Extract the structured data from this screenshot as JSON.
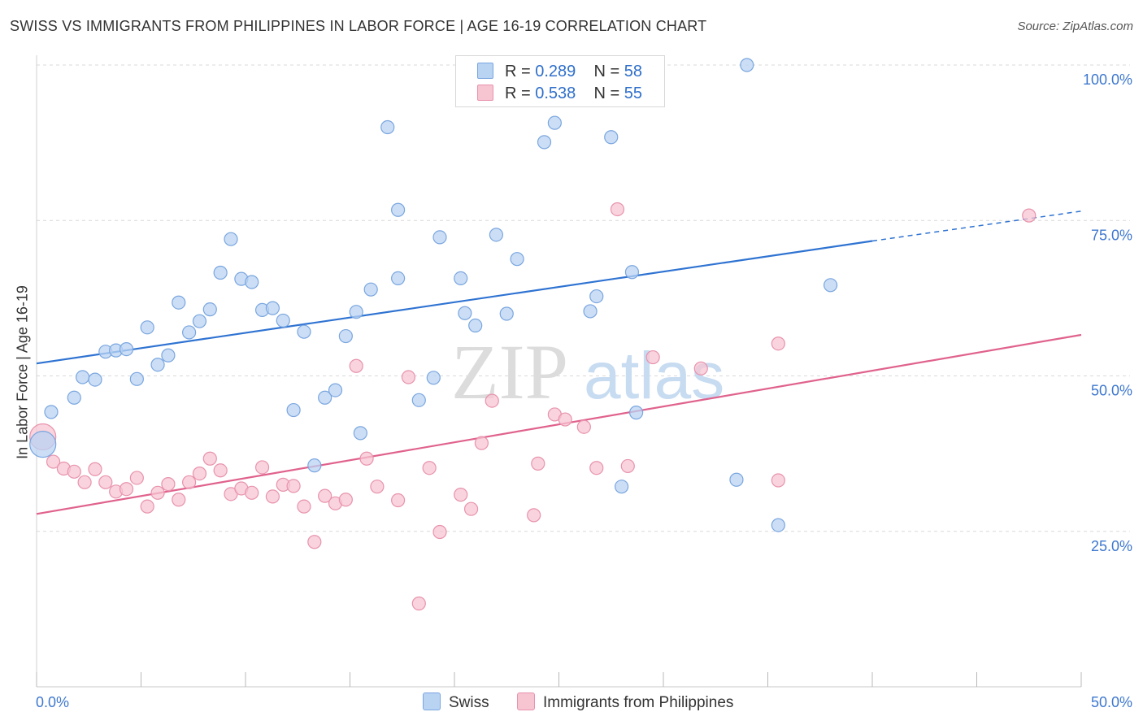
{
  "header": {
    "title": "SWISS VS IMMIGRANTS FROM PHILIPPINES IN LABOR FORCE | AGE 16-19 CORRELATION CHART",
    "source": "Source: ZipAtlas.com"
  },
  "legend": {
    "swiss": {
      "r_label": "R =",
      "r_value": "0.289",
      "n_label": "N =",
      "n_value": "58"
    },
    "philippines": {
      "r_label": "R =",
      "r_value": "0.538",
      "n_label": "N =",
      "n_value": "55"
    }
  },
  "bottom_legend": {
    "swiss": "Swiss",
    "philippines": "Immigrants from Philippines"
  },
  "watermark": {
    "zip": "ZIP",
    "atlas": "atlas"
  },
  "colors": {
    "swiss_fill": "#b9d3f3",
    "swiss_stroke": "#7aa6df",
    "swiss_line": "#2f73d2",
    "phil_fill": "#f7c4d2",
    "phil_stroke": "#e893ad",
    "phil_line": "#e0628d",
    "tick_label": "#3e78cf",
    "grid": "#d9d9d9"
  },
  "chart_data": {
    "type": "scatter",
    "title": "SWISS VS IMMIGRANTS FROM PHILIPPINES IN LABOR FORCE | AGE 16-19 CORRELATION CHART",
    "xlabel": "",
    "ylabel": "In Labor Force | Age 16-19",
    "xlim": [
      0,
      50
    ],
    "ylim": [
      0,
      100
    ],
    "x_tick_labels": [
      "0.0%",
      "50.0%"
    ],
    "y_ticks": [
      25,
      50,
      75,
      100
    ],
    "y_tick_labels": [
      "25.0%",
      "50.0%",
      "75.0%",
      "100.0%"
    ],
    "grid": true,
    "series": [
      {
        "name": "Swiss",
        "points": [
          [
            0.3,
            39.0
          ],
          [
            0.7,
            44.2
          ],
          [
            1.8,
            46.5
          ],
          [
            2.2,
            49.8
          ],
          [
            2.8,
            49.4
          ],
          [
            3.3,
            53.9
          ],
          [
            3.8,
            54.1
          ],
          [
            4.3,
            54.3
          ],
          [
            4.8,
            49.5
          ],
          [
            5.3,
            57.8
          ],
          [
            5.8,
            51.8
          ],
          [
            6.3,
            53.3
          ],
          [
            6.8,
            61.8
          ],
          [
            7.3,
            57.0
          ],
          [
            7.8,
            58.8
          ],
          [
            8.3,
            60.7
          ],
          [
            8.8,
            66.6
          ],
          [
            9.3,
            72.0
          ],
          [
            9.8,
            65.6
          ],
          [
            10.3,
            65.1
          ],
          [
            10.8,
            60.6
          ],
          [
            11.3,
            60.9
          ],
          [
            11.8,
            58.9
          ],
          [
            12.3,
            44.5
          ],
          [
            12.8,
            57.1
          ],
          [
            13.3,
            35.6
          ],
          [
            13.8,
            46.5
          ],
          [
            14.3,
            47.7
          ],
          [
            14.8,
            56.4
          ],
          [
            15.3,
            60.3
          ],
          [
            15.5,
            40.8
          ],
          [
            16.0,
            63.9
          ],
          [
            16.8,
            90.0
          ],
          [
            17.3,
            65.7
          ],
          [
            17.3,
            76.7
          ],
          [
            18.3,
            46.1
          ],
          [
            19.0,
            49.7
          ],
          [
            19.3,
            72.3
          ],
          [
            20.3,
            65.7
          ],
          [
            20.5,
            60.1
          ],
          [
            21.0,
            58.1
          ],
          [
            22.0,
            72.7
          ],
          [
            22.5,
            60.0
          ],
          [
            23.0,
            68.8
          ],
          [
            24.3,
            87.6
          ],
          [
            24.8,
            90.7
          ],
          [
            26.5,
            60.4
          ],
          [
            26.8,
            62.8
          ],
          [
            27.5,
            88.4
          ],
          [
            28.0,
            32.2
          ],
          [
            28.5,
            66.7
          ],
          [
            28.7,
            44.1
          ],
          [
            33.5,
            33.3
          ],
          [
            34.0,
            100.0
          ],
          [
            35.5,
            26.0
          ],
          [
            38.0,
            64.6
          ],
          [
            26.8,
            100.0
          ],
          [
            27.0,
            100.0
          ]
        ],
        "trend": {
          "x": [
            0,
            40
          ],
          "y": [
            52.0,
            71.7
          ],
          "dashed_extension_to": [
            50,
            76.5
          ]
        }
      },
      {
        "name": "Immigrants from Philippines",
        "points": [
          [
            0.3,
            40.2
          ],
          [
            0.8,
            36.2
          ],
          [
            1.3,
            35.1
          ],
          [
            1.8,
            34.6
          ],
          [
            2.3,
            32.9
          ],
          [
            2.8,
            35.0
          ],
          [
            3.3,
            32.9
          ],
          [
            3.8,
            31.4
          ],
          [
            4.3,
            31.8
          ],
          [
            4.8,
            33.6
          ],
          [
            5.3,
            29.0
          ],
          [
            5.8,
            31.2
          ],
          [
            6.3,
            32.6
          ],
          [
            6.8,
            30.1
          ],
          [
            7.3,
            32.9
          ],
          [
            7.8,
            34.3
          ],
          [
            8.3,
            36.7
          ],
          [
            8.8,
            34.8
          ],
          [
            9.3,
            31.0
          ],
          [
            9.8,
            31.9
          ],
          [
            10.3,
            31.2
          ],
          [
            10.8,
            35.3
          ],
          [
            11.3,
            30.6
          ],
          [
            11.8,
            32.5
          ],
          [
            12.3,
            32.3
          ],
          [
            12.8,
            29.0
          ],
          [
            13.3,
            23.3
          ],
          [
            13.8,
            30.7
          ],
          [
            14.3,
            29.5
          ],
          [
            14.8,
            30.1
          ],
          [
            15.3,
            51.6
          ],
          [
            15.8,
            36.7
          ],
          [
            16.3,
            32.2
          ],
          [
            17.3,
            30.0
          ],
          [
            17.8,
            49.8
          ],
          [
            18.3,
            13.4
          ],
          [
            18.8,
            35.2
          ],
          [
            19.3,
            24.9
          ],
          [
            20.3,
            30.9
          ],
          [
            20.8,
            28.6
          ],
          [
            21.3,
            39.2
          ],
          [
            21.8,
            46.0
          ],
          [
            23.8,
            27.6
          ],
          [
            24.0,
            35.9
          ],
          [
            24.8,
            43.8
          ],
          [
            25.3,
            43.0
          ],
          [
            26.2,
            41.8
          ],
          [
            26.8,
            35.2
          ],
          [
            27.8,
            76.8
          ],
          [
            28.3,
            35.5
          ],
          [
            29.5,
            53.0
          ],
          [
            31.8,
            51.2
          ],
          [
            35.5,
            55.2
          ],
          [
            35.5,
            33.2
          ],
          [
            47.5,
            75.8
          ]
        ],
        "trend": {
          "x": [
            0,
            50
          ],
          "y": [
            27.8,
            56.6
          ]
        }
      }
    ]
  }
}
